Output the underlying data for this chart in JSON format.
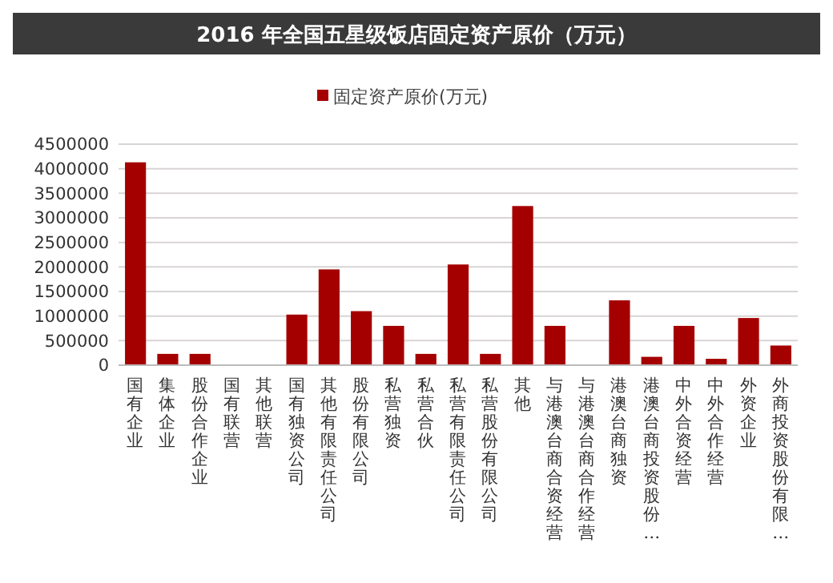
{
  "chart_data": {
    "type": "bar",
    "title": "2016 年全国五星级饭店固定资产原价（万元）",
    "categories": [
      "国有企业",
      "集体企业",
      "股份合作企业",
      "国有联营",
      "其他联营",
      "国有独资公司",
      "其他有限责任公司",
      "股份有限公司",
      "私营独资",
      "私营合伙",
      "私营有限责任公司",
      "私营股份有限公司",
      "其他",
      "与港澳台商合资经营",
      "与港澳台商合作经营",
      "港澳台商独资",
      "港澳台商投资股份…",
      "中外合资经营",
      "中外合作经营",
      "外资企业",
      "外商投资股份有限…"
    ],
    "series": [
      {
        "name": "固定资产原价(万元)",
        "color": "#a50000",
        "values": [
          4130000,
          230000,
          230000,
          0,
          0,
          1030000,
          1950000,
          1100000,
          800000,
          230000,
          2050000,
          230000,
          3240000,
          800000,
          0,
          1320000,
          170000,
          800000,
          130000,
          960000,
          400000
        ]
      }
    ],
    "ylim": [
      0,
      4500000
    ],
    "yticks": [
      0,
      500000,
      1000000,
      1500000,
      2000000,
      2500000,
      3000000,
      3500000,
      4000000,
      4500000
    ],
    "grid": "y",
    "legend": "top"
  }
}
